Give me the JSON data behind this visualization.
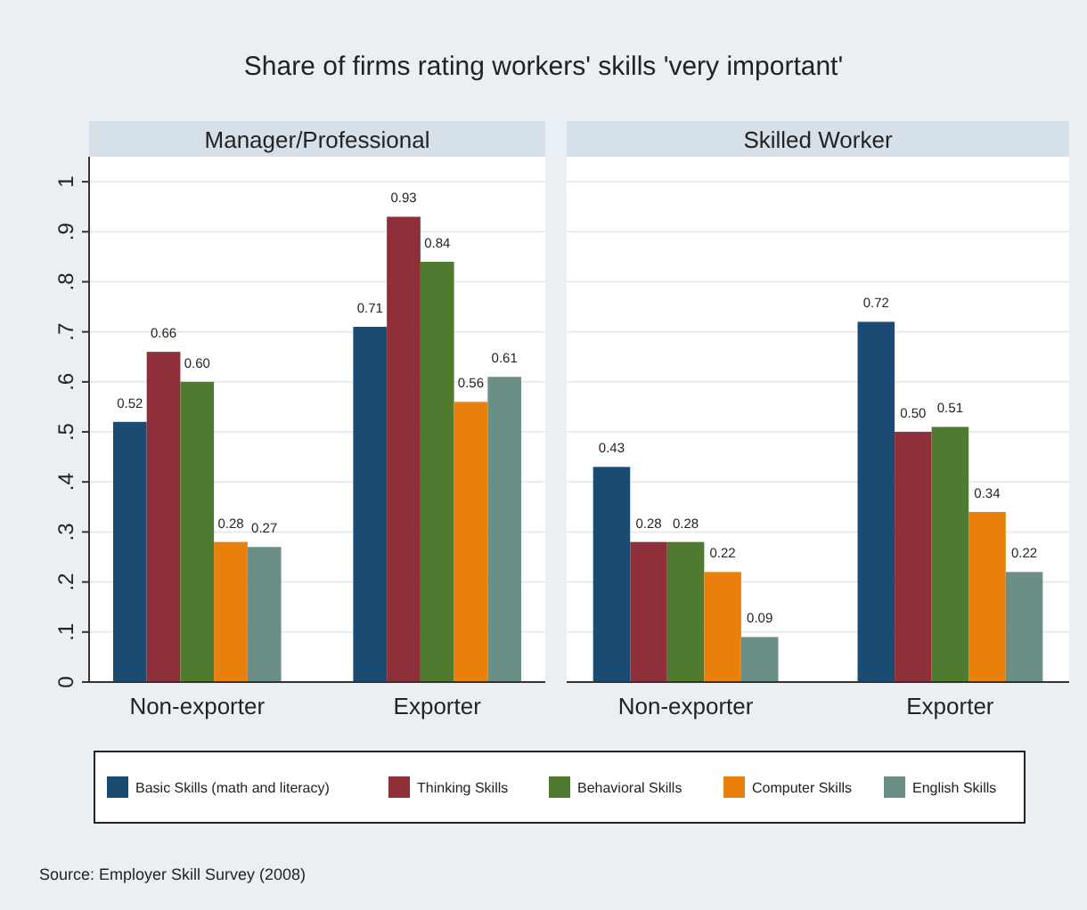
{
  "chart_data": [
    {
      "type": "bar",
      "title": "Share of firms rating workers' skills 'very important'",
      "subtitle": "Manager/Professional",
      "categories": [
        "Non-exporter",
        "Exporter"
      ],
      "series": [
        {
          "name": "Basic Skills (math and literacy)",
          "color": "#1b4a72",
          "values": [
            0.52,
            0.71
          ],
          "value_labels": [
            "0.52",
            "0.71"
          ]
        },
        {
          "name": "Thinking Skills",
          "color": "#8e2f3a",
          "values": [
            0.66,
            0.93
          ],
          "value_labels": [
            "0.66",
            "0.93"
          ]
        },
        {
          "name": "Behavioral Skills",
          "color": "#4f7a2f",
          "values": [
            0.6,
            0.84
          ],
          "value_labels": [
            "0.60",
            "0.84"
          ]
        },
        {
          "name": "Computer Skills",
          "color": "#e9800c",
          "values": [
            0.28,
            0.56
          ],
          "value_labels": [
            "0.28",
            "0.56"
          ]
        },
        {
          "name": "English Skills",
          "color": "#6b8e86",
          "values": [
            0.27,
            0.61
          ],
          "value_labels": [
            "0.27",
            "0.61"
          ]
        }
      ],
      "ylim": [
        0,
        1.05
      ],
      "yticks": [
        0,
        {
          "value": 0.1,
          "label": ".1"
        },
        {
          "value": 0.2,
          "label": ".2"
        },
        {
          "value": 0.3,
          "label": ".3"
        },
        {
          "value": 0.4,
          "label": ".4"
        },
        {
          "value": 0.5,
          "label": ".5"
        },
        {
          "value": 0.6,
          "label": ".6"
        },
        {
          "value": 0.7,
          "label": ".7"
        },
        {
          "value": 0.8,
          "label": ".8"
        },
        {
          "value": 0.9,
          "label": ".9"
        },
        1
      ],
      "grid": "y",
      "legend": "bottom"
    },
    {
      "type": "bar",
      "subtitle": "Skilled Worker",
      "categories": [
        "Non-exporter",
        "Exporter"
      ],
      "series": [
        {
          "color": "#1b4a72",
          "values": [
            0.43,
            0.72
          ],
          "value_labels": [
            "0.43",
            "0.72"
          ]
        },
        {
          "color": "#8e2f3a",
          "values": [
            0.28,
            0.5
          ],
          "value_labels": [
            "0.28",
            "0.50"
          ]
        },
        {
          "color": "#4f7a2f",
          "values": [
            0.28,
            0.51
          ],
          "value_labels": [
            "0.28",
            "0.51"
          ]
        },
        {
          "color": "#e9800c",
          "values": [
            0.22,
            0.34
          ],
          "value_labels": [
            "0.22",
            "0.34"
          ]
        },
        {
          "color": "#6b8e86",
          "values": [
            0.09,
            0.22
          ],
          "value_labels": [
            "0.09",
            "0.22"
          ]
        }
      ],
      "ylim": [
        0,
        1.05
      ],
      "yticks": [
        0,
        0.1,
        0.2,
        0.3,
        0.4,
        0.5,
        0.6,
        0.7,
        0.8,
        0.9,
        1
      ],
      "tick_labels": "x",
      "grid": "y",
      "annotations": [
        "Source: Employer Skill Survey (2008)"
      ]
    }
  ]
}
